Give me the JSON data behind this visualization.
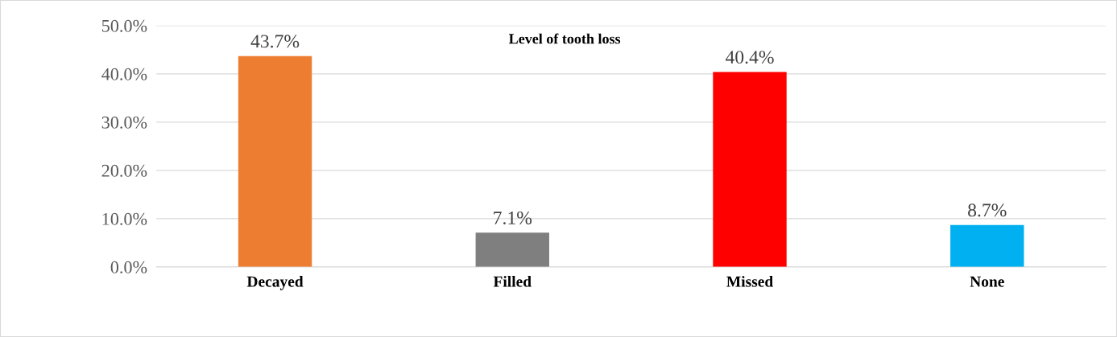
{
  "chart_data": {
    "type": "bar",
    "title": "Level of tooth loss",
    "categories": [
      "Decayed",
      "Filled",
      "Missed",
      "None"
    ],
    "values": [
      43.7,
      7.1,
      40.4,
      8.7
    ],
    "colors": [
      "#ed7d31",
      "#7f7f7f",
      "#ff0000",
      "#00b0f0"
    ],
    "value_labels": [
      "43.7%",
      "7.1%",
      "40.4%",
      "8.7%"
    ],
    "ylim": [
      0,
      50
    ],
    "yticks": [
      {
        "value": 0,
        "label": "0.0%"
      },
      {
        "value": 10,
        "label": "10.0%"
      },
      {
        "value": 20,
        "label": "20.0%"
      },
      {
        "value": 30,
        "label": "30.0%"
      },
      {
        "value": 40,
        "label": "40.0%"
      },
      {
        "value": 50,
        "label": "50.0%"
      }
    ],
    "grid": "y",
    "legend": false
  }
}
